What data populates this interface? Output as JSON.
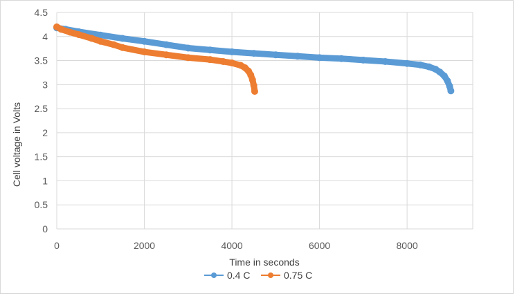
{
  "chart_data": {
    "type": "scatter",
    "title": "",
    "xlabel": "Time in seconds",
    "ylabel": "Cell voltage in Volts",
    "xlim": [
      0,
      9500
    ],
    "ylim": [
      0,
      4.5
    ],
    "x_ticks": [
      "0",
      "2000",
      "4000",
      "6000",
      "8000"
    ],
    "y_ticks": [
      "0",
      "0.5",
      "1",
      "1.5",
      "2",
      "2.5",
      "3",
      "3.5",
      "4",
      "4.5"
    ],
    "grid": true,
    "legend_position": "bottom",
    "series": [
      {
        "name": "0.4 C",
        "color": "#5b9bd5",
        "x": [
          0,
          200,
          500,
          1000,
          1500,
          2000,
          2500,
          3000,
          3500,
          4000,
          4500,
          5000,
          5500,
          6000,
          6500,
          7000,
          7500,
          8000,
          8300,
          8500,
          8650,
          8750,
          8850,
          8920,
          8970,
          9000
        ],
        "y": [
          4.18,
          4.15,
          4.1,
          4.03,
          3.96,
          3.9,
          3.83,
          3.76,
          3.72,
          3.68,
          3.65,
          3.62,
          3.59,
          3.56,
          3.54,
          3.51,
          3.48,
          3.44,
          3.41,
          3.37,
          3.32,
          3.26,
          3.18,
          3.08,
          2.97,
          2.87
        ]
      },
      {
        "name": "0.75 C",
        "color": "#ed7d31",
        "x": [
          0,
          100,
          300,
          500,
          800,
          1000,
          1300,
          1500,
          2000,
          2500,
          3000,
          3500,
          3800,
          4000,
          4200,
          4300,
          4380,
          4430,
          4470,
          4500,
          4520
        ],
        "y": [
          4.2,
          4.15,
          4.09,
          4.04,
          3.96,
          3.9,
          3.83,
          3.77,
          3.68,
          3.62,
          3.56,
          3.52,
          3.48,
          3.45,
          3.4,
          3.35,
          3.28,
          3.2,
          3.1,
          2.98,
          2.86
        ]
      }
    ]
  }
}
